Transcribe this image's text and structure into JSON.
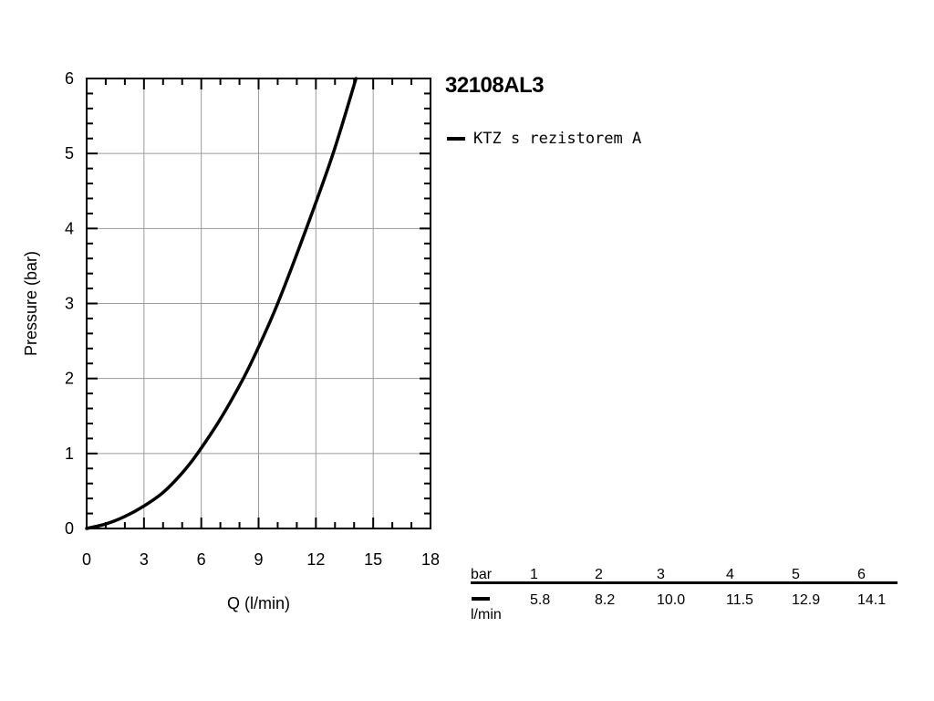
{
  "chart_data": {
    "type": "line",
    "title": "32108AL3",
    "xlabel": "Q (l/min)",
    "ylabel": "Pressure (bar)",
    "xlim": [
      0,
      18
    ],
    "ylim": [
      0,
      6
    ],
    "x_ticks": [
      "0",
      "3",
      "6",
      "9",
      "12",
      "15",
      "18"
    ],
    "y_ticks": [
      "0",
      "1",
      "2",
      "3",
      "4",
      "5",
      "6"
    ],
    "grid": true,
    "legend_position": "right",
    "series": [
      {
        "name": "KTZ s rezistorem A",
        "color": "#000000",
        "x": [
          0,
          1,
          2,
          3,
          4,
          5,
          5.8,
          7,
          8.2,
          9,
          10.0,
          11.5,
          12.9,
          14.1
        ],
        "y": [
          0,
          0.06,
          0.16,
          0.3,
          0.48,
          0.74,
          1,
          1.46,
          2,
          2.42,
          3,
          4,
          5,
          6
        ]
      }
    ]
  },
  "table": {
    "row_header": "bar",
    "unit_label": "l/min",
    "columns": [
      "1",
      "2",
      "3",
      "4",
      "5",
      "6"
    ],
    "values": [
      "5.8",
      "8.2",
      "10.0",
      "11.5",
      "12.9",
      "14.1"
    ]
  }
}
